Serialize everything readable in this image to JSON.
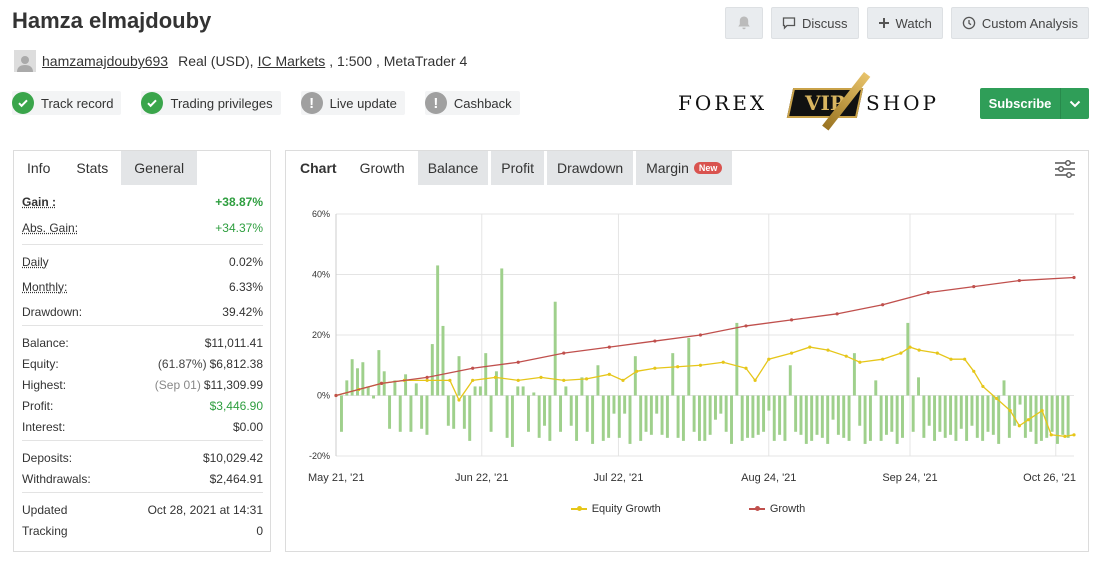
{
  "header": {
    "title": "Hamza elmajdouby",
    "username": "hamzamajdouby693",
    "account_type": "Real (USD),",
    "broker": "IC Markets",
    "leverage_platform": ", 1:500 , MetaTrader 4"
  },
  "actions": {
    "discuss": "Discuss",
    "watch": "Watch",
    "custom_analysis": "Custom Analysis"
  },
  "badges": [
    {
      "label": "Track record",
      "status": "ok"
    },
    {
      "label": "Trading privileges",
      "status": "ok"
    },
    {
      "label": "Live update",
      "status": "warn"
    },
    {
      "label": "Cashback",
      "status": "warn"
    }
  ],
  "logo": {
    "left": "FOREX",
    "mid": "VIP",
    "right": "SHOP"
  },
  "subscribe": {
    "label": "Subscribe"
  },
  "left_tabs": {
    "info": "Info",
    "stats": "Stats",
    "general": "General"
  },
  "stats": {
    "gain": {
      "label": "Gain :",
      "value": "+38.87%"
    },
    "abs_gain": {
      "label": "Abs. Gain:",
      "value": "+34.37%"
    },
    "daily": {
      "label": "Daily",
      "value": "0.02%"
    },
    "monthly": {
      "label": "Monthly:",
      "value": "6.33%"
    },
    "drawdown": {
      "label": "Drawdown:",
      "value": "39.42%"
    },
    "balance": {
      "label": "Balance:",
      "value": "$11,011.41"
    },
    "equity": {
      "label": "Equity:",
      "pre": "(61.87%)",
      "value": "$6,812.38"
    },
    "highest": {
      "label": "Highest:",
      "pre": "(Sep 01)",
      "value": "$11,309.99"
    },
    "profit": {
      "label": "Profit:",
      "value": "$3,446.90"
    },
    "interest": {
      "label": "Interest:",
      "value": "$0.00"
    },
    "deposits": {
      "label": "Deposits:",
      "value": "$10,029.42"
    },
    "withdrawals": {
      "label": "Withdrawals:",
      "value": "$2,464.91"
    },
    "updated": {
      "label": "Updated",
      "value": "Oct 28, 2021 at 14:31"
    },
    "tracking": {
      "label": "Tracking",
      "value": "0"
    }
  },
  "chart_tabs": {
    "chart": "Chart",
    "growth": "Growth",
    "balance": "Balance",
    "profit": "Profit",
    "drawdown": "Drawdown",
    "margin": "Margin",
    "new_badge": "New"
  },
  "colors": {
    "growth": "#c0504d",
    "equity": "#e6c619",
    "bars": "#9fd08c"
  },
  "chart_data": {
    "type": "line",
    "ylim": [
      -20,
      60
    ],
    "yticks": [
      "-20%",
      "0%",
      "20%",
      "40%",
      "60%"
    ],
    "xticks": [
      "May 21, '21",
      "Jun 22, '21",
      "Jul 22, '21",
      "Aug 24, '21",
      "Sep 24, '21",
      "Oct 26, '21"
    ],
    "xtick_days": [
      0,
      32,
      62,
      95,
      126,
      158
    ],
    "grid": true,
    "legend_position": "bottom",
    "series": [
      {
        "name": "Equity Growth",
        "color": "#e6c619",
        "points": [
          [
            0,
            0
          ],
          [
            5,
            2
          ],
          [
            10,
            4
          ],
          [
            15,
            5
          ],
          [
            20,
            5
          ],
          [
            25,
            5
          ],
          [
            27,
            -1.5
          ],
          [
            30,
            5
          ],
          [
            35,
            6
          ],
          [
            40,
            5
          ],
          [
            45,
            6
          ],
          [
            50,
            5
          ],
          [
            55,
            5.5
          ],
          [
            60,
            7
          ],
          [
            63,
            5
          ],
          [
            66,
            8
          ],
          [
            70,
            9
          ],
          [
            75,
            9.5
          ],
          [
            80,
            10
          ],
          [
            85,
            11
          ],
          [
            90,
            9
          ],
          [
            92,
            5
          ],
          [
            95,
            12
          ],
          [
            100,
            14
          ],
          [
            104,
            16
          ],
          [
            108,
            15
          ],
          [
            112,
            13
          ],
          [
            115,
            11
          ],
          [
            120,
            12
          ],
          [
            124,
            14
          ],
          [
            126,
            16
          ],
          [
            128,
            15
          ],
          [
            132,
            14
          ],
          [
            135,
            12
          ],
          [
            138,
            12
          ],
          [
            140,
            8
          ],
          [
            142,
            3
          ],
          [
            145,
            -1
          ],
          [
            148,
            -5
          ],
          [
            150,
            -10
          ],
          [
            152,
            -8
          ],
          [
            155,
            -5
          ],
          [
            157,
            -13
          ],
          [
            160,
            -13.5
          ],
          [
            162,
            -13
          ]
        ]
      },
      {
        "name": "Growth",
        "color": "#c0504d",
        "points": [
          [
            0,
            0
          ],
          [
            10,
            4
          ],
          [
            20,
            6
          ],
          [
            30,
            9
          ],
          [
            40,
            11
          ],
          [
            50,
            14
          ],
          [
            60,
            16
          ],
          [
            70,
            18
          ],
          [
            80,
            20
          ],
          [
            90,
            23
          ],
          [
            100,
            25
          ],
          [
            110,
            27
          ],
          [
            120,
            30
          ],
          [
            130,
            34
          ],
          [
            140,
            36
          ],
          [
            150,
            38
          ],
          [
            162,
            39
          ]
        ]
      }
    ],
    "bars": [
      -12,
      5,
      12,
      9,
      11,
      3,
      -1,
      15,
      8,
      -11,
      5,
      -12,
      7,
      -12,
      4,
      -11,
      -13,
      17,
      43,
      23,
      -10,
      -11,
      13,
      -11,
      -15,
      3,
      3,
      14,
      -12,
      8,
      42,
      -14,
      -17,
      3,
      3,
      -12,
      1,
      -14,
      -10,
      -15,
      31,
      -12,
      3,
      -10,
      -15,
      6,
      -12,
      -16,
      10,
      -15,
      -14,
      -6,
      -14,
      -6,
      -16,
      13,
      -15,
      -12,
      -13,
      -6,
      -13,
      -14,
      14,
      -14,
      -15,
      19,
      -12,
      -15,
      -15,
      -13,
      -8,
      -6,
      -12,
      -16,
      24,
      -15,
      -14,
      -14,
      -13,
      -12,
      -5,
      -15,
      -13,
      -15,
      10,
      -12,
      -13,
      -16,
      -15,
      -13,
      -14,
      -16,
      -8,
      -13,
      -14,
      -15,
      14,
      -10,
      -16,
      -15,
      5,
      -15,
      -13,
      -12,
      -16,
      -14,
      24,
      -12,
      6,
      -14,
      -10,
      -15,
      -12,
      -14,
      -13,
      -15,
      -11,
      -15,
      -10,
      -14,
      -15,
      -12,
      -13,
      -16,
      5,
      -14,
      -10,
      -3,
      -14,
      -12,
      -16,
      -15,
      -14,
      -12,
      -16,
      -13,
      -14
    ]
  }
}
